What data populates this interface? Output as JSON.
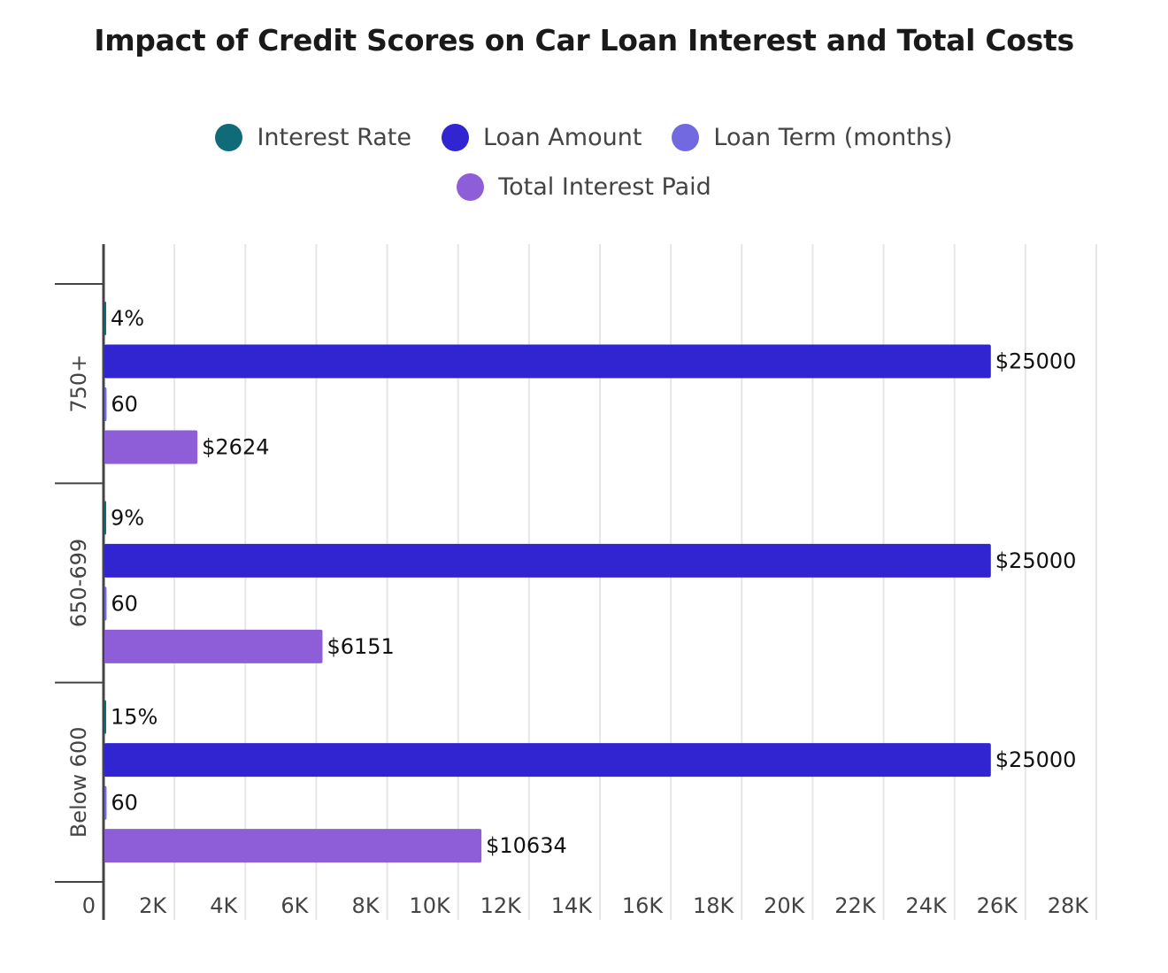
{
  "chart_data": {
    "type": "bar",
    "orientation": "horizontal",
    "title": "Impact of Credit Scores on Car Loan Interest and Total Costs",
    "xlabel": "",
    "ylabel": "",
    "categories": [
      "750+",
      "650-699",
      "Below 600"
    ],
    "series": [
      {
        "name": "Interest Rate",
        "color": "#0f6b78",
        "values": [
          4,
          9,
          15
        ],
        "labels": [
          "4%",
          "9%",
          "15%"
        ]
      },
      {
        "name": "Loan Amount",
        "color": "#3124d1",
        "values": [
          25000,
          25000,
          25000
        ],
        "labels": [
          "$25000",
          "$25000",
          "$25000"
        ]
      },
      {
        "name": "Loan Term (months)",
        "color": "#7268e0",
        "values": [
          60,
          60,
          60
        ],
        "labels": [
          "60",
          "60",
          "60"
        ]
      },
      {
        "name": "Total Interest Paid",
        "color": "#8d5ed8",
        "values": [
          2624,
          6151,
          10634
        ],
        "labels": [
          "$2624",
          "$6151",
          "$10634"
        ]
      }
    ],
    "xlim": [
      0,
      28000
    ],
    "x_ticks": [
      0,
      2000,
      4000,
      6000,
      8000,
      10000,
      12000,
      14000,
      16000,
      18000,
      20000,
      22000,
      24000,
      26000,
      28000
    ],
    "x_tick_labels": [
      "0",
      "2K",
      "4K",
      "6K",
      "8K",
      "10K",
      "12K",
      "14K",
      "16K",
      "18K",
      "20K",
      "22K",
      "24K",
      "26K",
      "28K"
    ],
    "grid": true,
    "legend_position": "top-center"
  }
}
